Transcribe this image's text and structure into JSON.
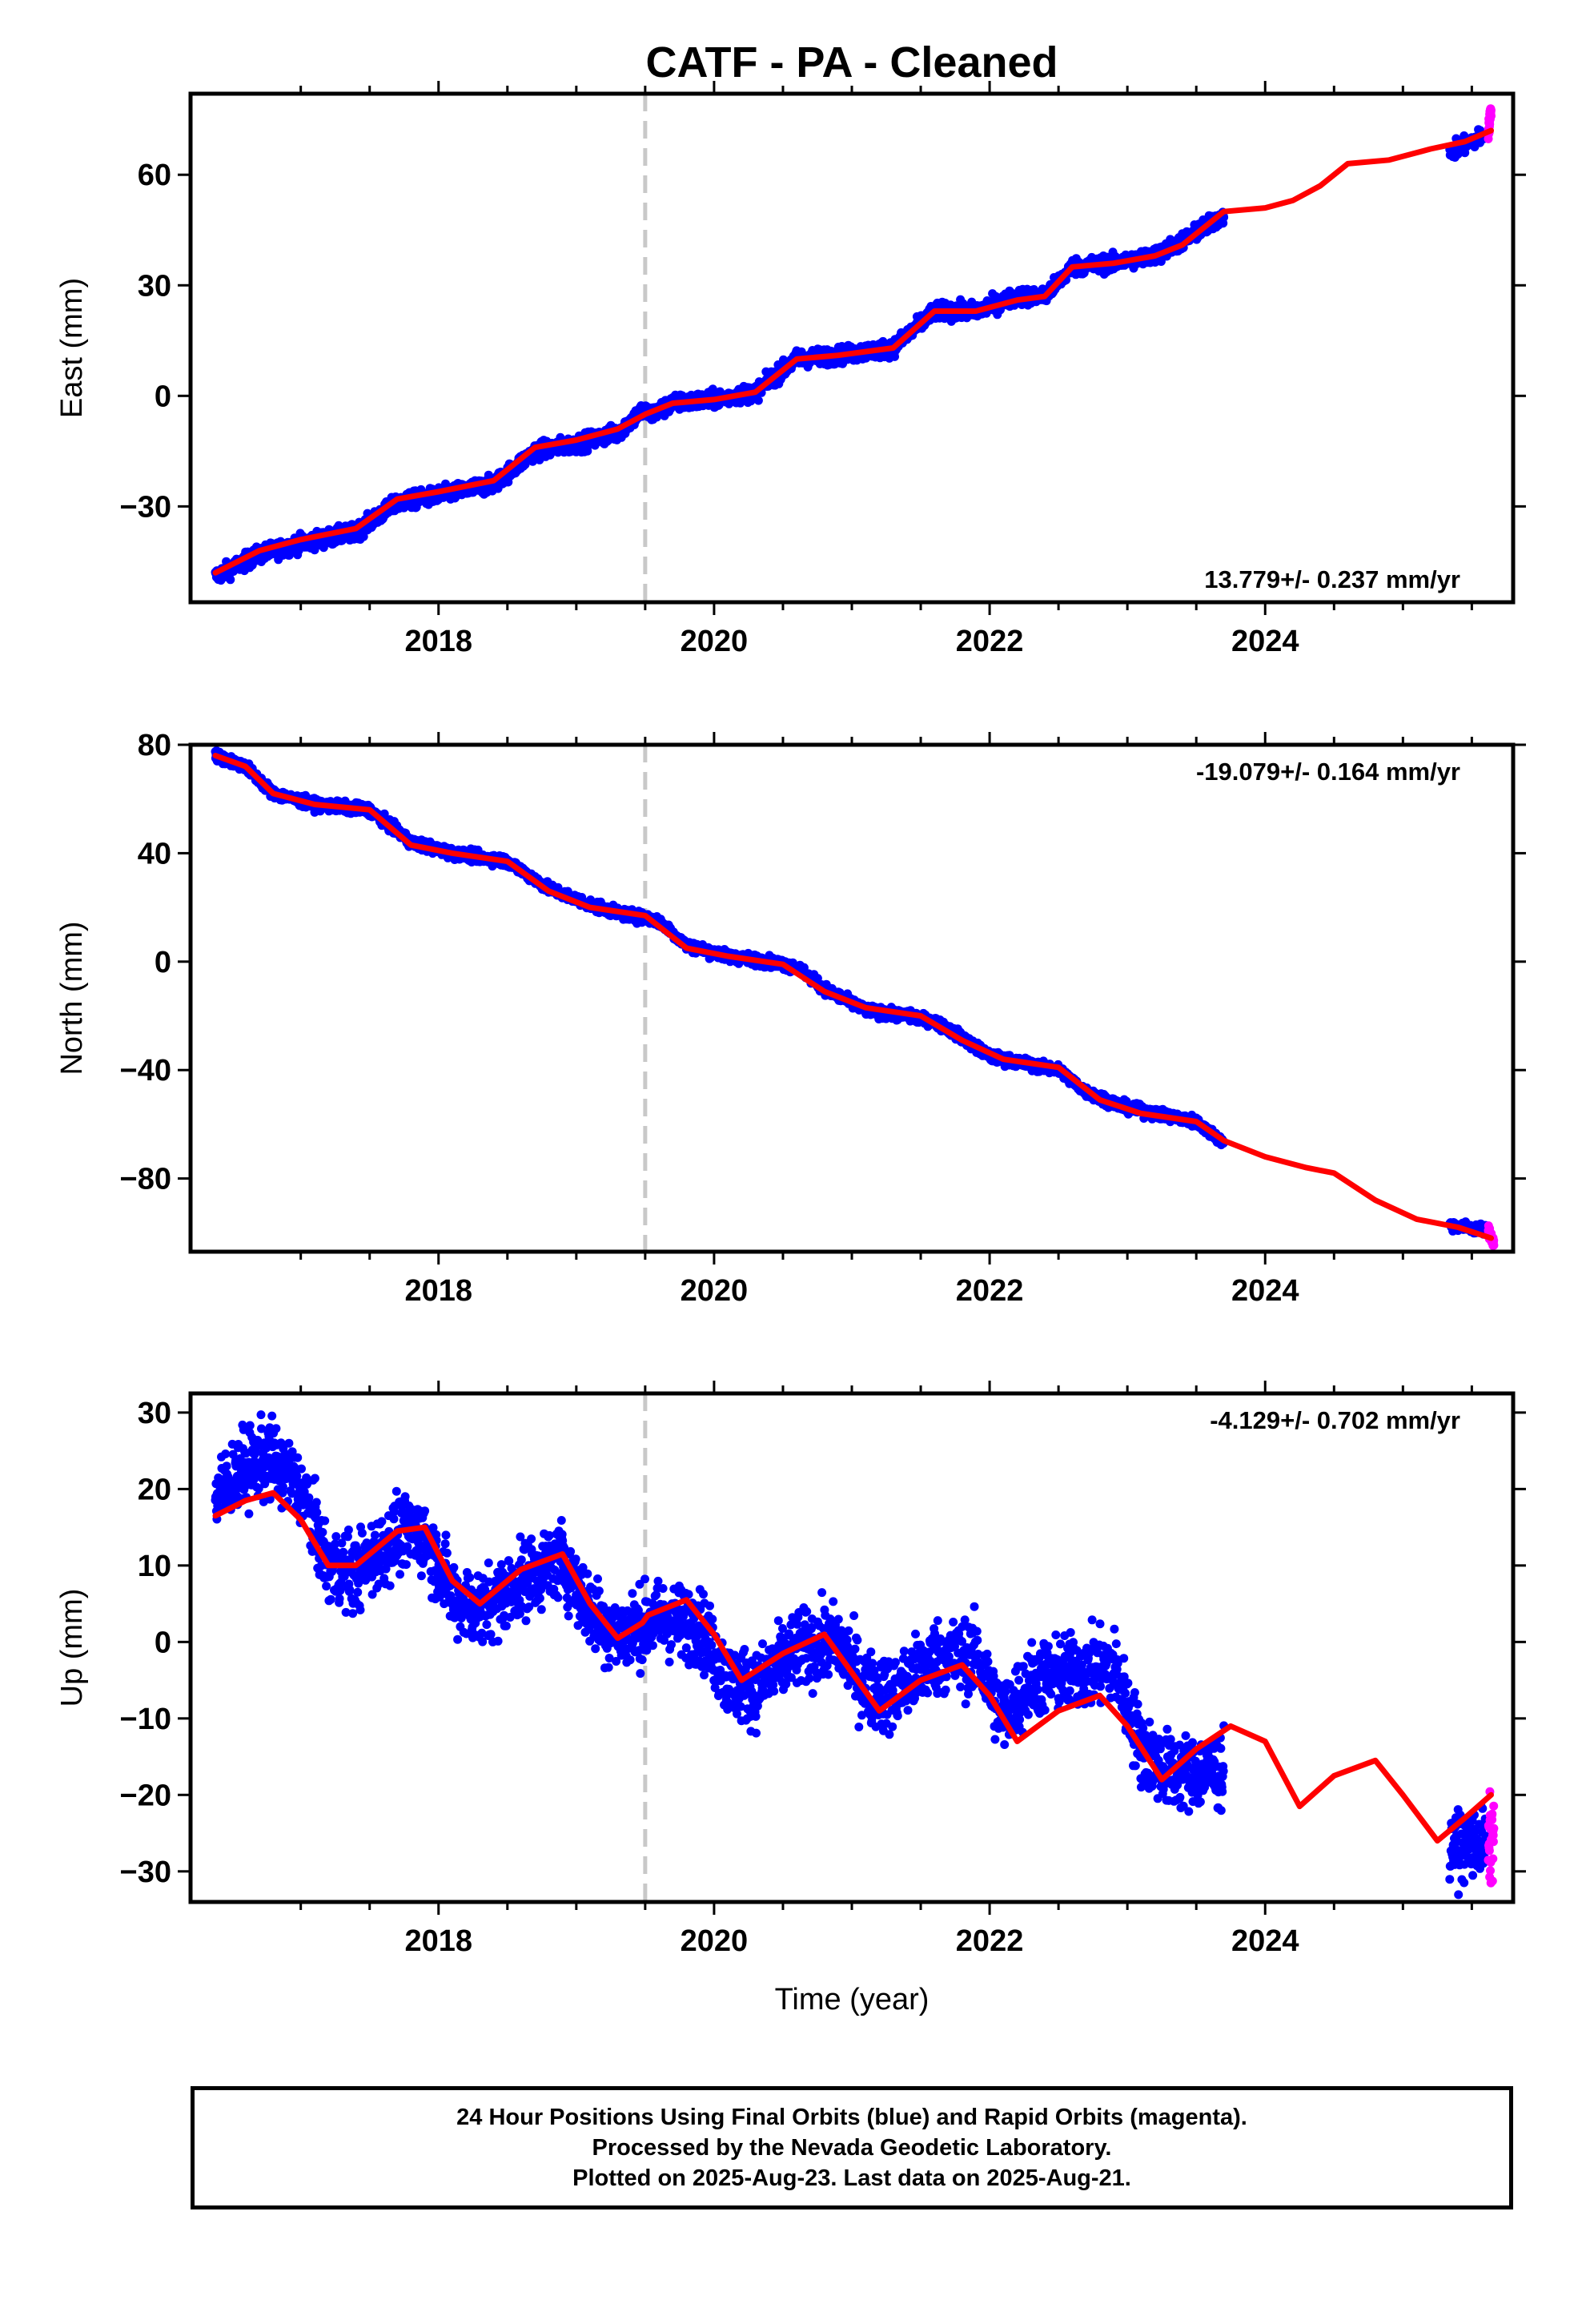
{
  "chart_data": [
    {
      "type": "scatter",
      "title": "CATF  - PA - Cleaned",
      "ylabel": "East (mm)",
      "xlabel": "",
      "xlim": [
        2016.2,
        2025.8
      ],
      "ylim": [
        -56,
        82
      ],
      "xticks": [
        2018,
        2020,
        2022,
        2024
      ],
      "yticks": [
        -30,
        0,
        30,
        60
      ],
      "grid": false,
      "rate_label": "13.779+/- 0.237 mm/yr",
      "rate_position": "bottom-right",
      "break_line_x": 2019.5,
      "series": [
        {
          "color": "#0000ff",
          "noise": 1.6,
          "trend": [
            [
              2016.38,
              -49
            ],
            [
              2016.7,
              -43
            ],
            [
              2017.0,
              -40
            ],
            [
              2017.4,
              -37
            ],
            [
              2017.7,
              -29
            ],
            [
              2018.0,
              -27
            ],
            [
              2018.4,
              -24
            ],
            [
              2018.7,
              -15
            ],
            [
              2019.0,
              -13
            ],
            [
              2019.3,
              -10
            ],
            [
              2019.48,
              -4
            ],
            [
              2019.55,
              -5
            ],
            [
              2019.7,
              -2
            ],
            [
              2020.0,
              -1
            ],
            [
              2020.3,
              1
            ],
            [
              2020.6,
              10
            ],
            [
              2020.9,
              11
            ],
            [
              2021.3,
              13
            ],
            [
              2021.6,
              23
            ],
            [
              2021.9,
              23
            ],
            [
              2022.2,
              27
            ],
            [
              2022.4,
              27
            ],
            [
              2022.6,
              35
            ],
            [
              2022.9,
              36
            ],
            [
              2023.2,
              38
            ],
            [
              2023.4,
              42
            ],
            [
              2023.7,
              49
            ]
          ]
        },
        {
          "color": "#0000ff",
          "noise": 1.6,
          "trend": [
            [
              2025.34,
              66
            ],
            [
              2025.6,
              71
            ]
          ]
        },
        {
          "color": "#ff00ff",
          "noise": 2,
          "trend": [
            [
              2025.62,
              71
            ],
            [
              2025.64,
              79
            ]
          ]
        }
      ],
      "model": {
        "color": "#ff0000",
        "points": [
          [
            2016.38,
            -48
          ],
          [
            2016.7,
            -42
          ],
          [
            2017.0,
            -39
          ],
          [
            2017.4,
            -36
          ],
          [
            2017.7,
            -28
          ],
          [
            2018.0,
            -26
          ],
          [
            2018.4,
            -23
          ],
          [
            2018.7,
            -14
          ],
          [
            2019.0,
            -12
          ],
          [
            2019.3,
            -9
          ],
          [
            2019.5,
            -5
          ],
          [
            2019.7,
            -2
          ],
          [
            2020.0,
            -1
          ],
          [
            2020.3,
            1
          ],
          [
            2020.6,
            10
          ],
          [
            2020.9,
            11
          ],
          [
            2021.3,
            13
          ],
          [
            2021.6,
            23
          ],
          [
            2021.9,
            23
          ],
          [
            2022.2,
            26
          ],
          [
            2022.4,
            27
          ],
          [
            2022.6,
            35
          ],
          [
            2022.9,
            36
          ],
          [
            2023.2,
            38
          ],
          [
            2023.4,
            41
          ],
          [
            2023.7,
            50
          ],
          [
            2024.0,
            51
          ],
          [
            2024.2,
            53
          ],
          [
            2024.4,
            57
          ],
          [
            2024.6,
            63
          ],
          [
            2024.9,
            64
          ],
          [
            2025.2,
            67
          ],
          [
            2025.45,
            69
          ],
          [
            2025.64,
            72
          ]
        ]
      }
    },
    {
      "type": "scatter",
      "title": "",
      "ylabel": "North (mm)",
      "xlabel": "",
      "xlim": [
        2016.2,
        2025.8
      ],
      "ylim": [
        -107,
        80
      ],
      "xticks": [
        2018,
        2020,
        2022,
        2024
      ],
      "yticks": [
        -80,
        -40,
        0,
        40,
        80
      ],
      "grid": false,
      "rate_label": "-19.079+/- 0.164 mm/yr",
      "rate_position": "top-right",
      "break_line_x": 2019.5,
      "series": [
        {
          "color": "#0000ff",
          "noise": 1.4,
          "trend": [
            [
              2016.38,
              76
            ],
            [
              2016.6,
              72
            ],
            [
              2016.8,
              62
            ],
            [
              2017.1,
              58
            ],
            [
              2017.5,
              56
            ],
            [
              2017.8,
              44
            ],
            [
              2018.1,
              40
            ],
            [
              2018.5,
              37
            ],
            [
              2018.8,
              27
            ],
            [
              2019.1,
              21
            ],
            [
              2019.3,
              18
            ],
            [
              2019.6,
              15
            ],
            [
              2019.8,
              6
            ],
            [
              2020.1,
              2
            ],
            [
              2020.4,
              0
            ],
            [
              2020.6,
              -2
            ],
            [
              2020.8,
              -10
            ],
            [
              2021.1,
              -18
            ],
            [
              2021.4,
              -20
            ],
            [
              2021.6,
              -22
            ],
            [
              2021.8,
              -28
            ],
            [
              2022.0,
              -35
            ],
            [
              2022.3,
              -38
            ],
            [
              2022.5,
              -40
            ],
            [
              2022.7,
              -48
            ],
            [
              2023.0,
              -54
            ],
            [
              2023.3,
              -57
            ],
            [
              2023.5,
              -59
            ],
            [
              2023.7,
              -67
            ]
          ]
        },
        {
          "color": "#0000ff",
          "noise": 1.3,
          "trend": [
            [
              2025.34,
              -97
            ],
            [
              2025.6,
              -99
            ]
          ]
        },
        {
          "color": "#ff00ff",
          "noise": 1.5,
          "trend": [
            [
              2025.62,
              -99
            ],
            [
              2025.66,
              -104
            ]
          ]
        }
      ],
      "model": {
        "color": "#ff0000",
        "points": [
          [
            2016.38,
            76
          ],
          [
            2016.6,
            72
          ],
          [
            2016.8,
            62
          ],
          [
            2017.1,
            58
          ],
          [
            2017.5,
            56
          ],
          [
            2017.8,
            43
          ],
          [
            2018.1,
            40
          ],
          [
            2018.5,
            37
          ],
          [
            2018.8,
            26
          ],
          [
            2019.1,
            20
          ],
          [
            2019.5,
            17
          ],
          [
            2019.8,
            5
          ],
          [
            2020.1,
            2
          ],
          [
            2020.5,
            -1
          ],
          [
            2020.8,
            -11
          ],
          [
            2021.1,
            -17
          ],
          [
            2021.5,
            -20
          ],
          [
            2021.8,
            -29
          ],
          [
            2022.1,
            -36
          ],
          [
            2022.5,
            -39
          ],
          [
            2022.8,
            -51
          ],
          [
            2023.1,
            -56
          ],
          [
            2023.5,
            -59
          ],
          [
            2023.7,
            -66
          ],
          [
            2024.0,
            -72
          ],
          [
            2024.3,
            -76
          ],
          [
            2024.5,
            -78
          ],
          [
            2024.8,
            -88
          ],
          [
            2025.1,
            -95
          ],
          [
            2025.4,
            -98
          ],
          [
            2025.64,
            -102
          ]
        ]
      }
    },
    {
      "type": "scatter",
      "title": "",
      "ylabel": "Up (mm)",
      "xlabel": "Time (year)",
      "xlim": [
        2016.2,
        2025.8
      ],
      "ylim": [
        -34,
        32.5
      ],
      "xticks": [
        2018,
        2020,
        2022,
        2024
      ],
      "yticks": [
        -30,
        -20,
        -10,
        0,
        10,
        20,
        30
      ],
      "grid": false,
      "rate_label": "-4.129+/- 0.702 mm/yr",
      "rate_position": "top-right",
      "break_line_x": 2019.5,
      "series": [
        {
          "color": "#0000ff",
          "noise": 3.5,
          "trend": [
            [
              2016.38,
              19
            ],
            [
              2016.6,
              23
            ],
            [
              2016.8,
              24
            ],
            [
              2017.0,
              20
            ],
            [
              2017.2,
              10
            ],
            [
              2017.4,
              9
            ],
            [
              2017.7,
              14
            ],
            [
              2017.9,
              14
            ],
            [
              2018.1,
              6
            ],
            [
              2018.3,
              4
            ],
            [
              2018.6,
              8
            ],
            [
              2018.9,
              11
            ],
            [
              2019.1,
              4
            ],
            [
              2019.3,
              1
            ],
            [
              2019.6,
              3
            ],
            [
              2019.9,
              2
            ],
            [
              2020.1,
              -5
            ],
            [
              2020.3,
              -6
            ],
            [
              2020.6,
              -1
            ],
            [
              2020.9,
              0
            ],
            [
              2021.1,
              -6
            ],
            [
              2021.3,
              -7
            ],
            [
              2021.6,
              -2
            ],
            [
              2021.9,
              -2
            ],
            [
              2022.1,
              -10
            ],
            [
              2022.3,
              -5
            ],
            [
              2022.6,
              -4
            ],
            [
              2022.9,
              -3
            ],
            [
              2023.1,
              -14
            ],
            [
              2023.3,
              -17
            ],
            [
              2023.7,
              -17
            ]
          ]
        },
        {
          "color": "#0000ff",
          "noise": 3,
          "trend": [
            [
              2025.34,
              -27
            ],
            [
              2025.6,
              -26
            ]
          ]
        },
        {
          "color": "#ff00ff",
          "noise": 4,
          "trend": [
            [
              2025.62,
              -27
            ],
            [
              2025.66,
              -25
            ]
          ]
        }
      ],
      "model": {
        "color": "#ff0000",
        "points": [
          [
            2016.38,
            16.5
          ],
          [
            2016.6,
            18.5
          ],
          [
            2016.8,
            19.5
          ],
          [
            2017.0,
            16
          ],
          [
            2017.2,
            10
          ],
          [
            2017.4,
            10
          ],
          [
            2017.7,
            14.5
          ],
          [
            2017.9,
            15
          ],
          [
            2018.1,
            8
          ],
          [
            2018.3,
            5
          ],
          [
            2018.6,
            9.5
          ],
          [
            2018.9,
            11.5
          ],
          [
            2019.1,
            5
          ],
          [
            2019.3,
            0.5
          ],
          [
            2019.48,
            2.5
          ],
          [
            2019.52,
            3.5
          ],
          [
            2019.8,
            5.5
          ],
          [
            2020.0,
            1
          ],
          [
            2020.2,
            -5
          ],
          [
            2020.5,
            -1.5
          ],
          [
            2020.8,
            1
          ],
          [
            2021.0,
            -4
          ],
          [
            2021.2,
            -9
          ],
          [
            2021.5,
            -5
          ],
          [
            2021.8,
            -3
          ],
          [
            2022.0,
            -7
          ],
          [
            2022.2,
            -13
          ],
          [
            2022.5,
            -9
          ],
          [
            2022.8,
            -7
          ],
          [
            2023.0,
            -11
          ],
          [
            2023.25,
            -18
          ],
          [
            2023.5,
            -14
          ],
          [
            2023.75,
            -11
          ],
          [
            2024.0,
            -13
          ],
          [
            2024.25,
            -21.5
          ],
          [
            2024.5,
            -17.5
          ],
          [
            2024.8,
            -15.5
          ],
          [
            2025.0,
            -20
          ],
          [
            2025.25,
            -26
          ],
          [
            2025.45,
            -23
          ],
          [
            2025.64,
            -20
          ]
        ]
      }
    }
  ],
  "footer": {
    "line1": "24 Hour Positions Using Final Orbits (blue) and Rapid Orbits (magenta).",
    "line2": "Processed by the Nevada Geodetic Laboratory.",
    "line3": "Plotted on 2025-Aug-23. Last data on 2025-Aug-21."
  }
}
